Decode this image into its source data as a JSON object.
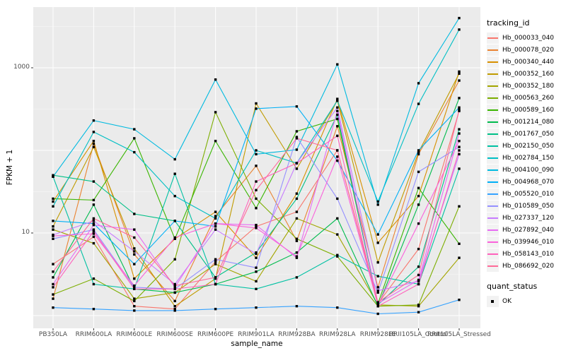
{
  "legend": {
    "tracking_title": "tracking_id",
    "quant_title": "quant_status",
    "quant_ok_label": "OK"
  },
  "chart_data": {
    "type": "line",
    "title": "",
    "xlabel": "sample_name",
    "ylabel": "FPKM + 1",
    "y_scale": "log10",
    "ylim": [
      0.7,
      5430
    ],
    "y_tick_labels": [
      {
        "value": 10,
        "label": "10"
      },
      {
        "value": 1000,
        "label": "1000"
      }
    ],
    "y_major_gridlines": [
      1,
      10,
      100,
      1000
    ],
    "y_minor_gridlines": [
      3.162,
      31.62,
      316.2,
      3162
    ],
    "panel_background": "#EBEBEB",
    "gridline_color": "#FFFFFF",
    "point_color": "#000000",
    "point_shape": "square",
    "legend_position": "right",
    "grid": "major and minor horizontal white lines, vertical white line per category",
    "categories": [
      "PB350LA",
      "RRIM600LA",
      "RRIM600LE",
      "RRIM600SE",
      "RRIM600PE",
      "RRIM901LA",
      "RRIM928BA",
      "RRIM928LA",
      "RRIM928LE",
      "RRII105LA_Control",
      "RRII105LA_Stressed"
    ],
    "series": [
      {
        "name": "Hb_000033_040",
        "color": "#F8766D",
        "values": [
          4.2,
          9,
          1.3,
          1.2,
          4.5,
          12,
          18,
          100,
          1.4,
          6.4,
          300
        ]
      },
      {
        "name": "Hb_000078_020",
        "color": "#EA8331",
        "values": [
          1.6,
          120,
          5.5,
          1.5,
          16,
          65,
          8,
          196,
          2.2,
          90,
          700
        ]
      },
      {
        "name": "Hb_000340_440",
        "color": "#D89000",
        "values": [
          24,
          130,
          2.8,
          8.5,
          18,
          5,
          30,
          420,
          7.6,
          28,
          900
        ]
      },
      {
        "name": "Hb_000352_160",
        "color": "#C09B00",
        "values": [
          12,
          110,
          6.5,
          1.3,
          2.8,
          370,
          60,
          400,
          4.4,
          95,
          850
        ]
      },
      {
        "name": "Hb_000352_180",
        "color": "#A3A500",
        "values": [
          11,
          7.5,
          1.6,
          1.9,
          4.2,
          2.6,
          15,
          9.6,
          1.35,
          1.3,
          5
        ]
      },
      {
        "name": "Hb_000563_260",
        "color": "#7CAE00",
        "values": [
          1.8,
          2.8,
          1.5,
          4.8,
          290,
          26,
          8.5,
          5.2,
          1.3,
          1.35,
          21
        ]
      },
      {
        "name": "Hb_000589_160",
        "color": "#39B600",
        "values": [
          26,
          25,
          140,
          8.5,
          130,
          20,
          170,
          240,
          1.4,
          35,
          7.4
        ]
      },
      {
        "name": "Hb_001214_080",
        "color": "#00BB4E",
        "values": [
          2.9,
          22,
          2.1,
          1.9,
          2.4,
          3.4,
          5.8,
          15,
          1.3,
          22,
          430
        ]
      },
      {
        "name": "Hb_001767_050",
        "color": "#00C087",
        "values": [
          50,
          42,
          17,
          14,
          2.9,
          5.8,
          26,
          270,
          1.35,
          3.9,
          180
        ]
      },
      {
        "name": "Hb_002150_050",
        "color": "#00C1A3",
        "values": [
          48,
          2.4,
          2.1,
          52,
          2.4,
          2.1,
          2.9,
          5.4,
          3.0,
          2.4,
          60
        ]
      },
      {
        "name": "Hb_002784_150",
        "color": "#00BFC4",
        "values": [
          21,
          167,
          95,
          28,
          15,
          100,
          70,
          400,
          24,
          366,
          2900
        ]
      },
      {
        "name": "Hb_004100_090",
        "color": "#00BAE0",
        "values": [
          48,
          230,
          180,
          78,
          720,
          90,
          102,
          1100,
          22,
          650,
          4000
        ]
      },
      {
        "name": "Hb_004968_070",
        "color": "#00B0F6",
        "values": [
          14,
          13,
          4.2,
          14,
          12,
          320,
          340,
          75,
          9.6,
          100,
          330
        ]
      },
      {
        "name": "Hb_005520_010",
        "color": "#35A2FF",
        "values": [
          1.25,
          1.2,
          1.15,
          1.15,
          1.2,
          1.25,
          1.3,
          1.25,
          1.05,
          1.1,
          1.55
        ]
      },
      {
        "name": "Hb_010589_050",
        "color": "#9590FF",
        "values": [
          8.5,
          11,
          2.2,
          2.1,
          4.8,
          3.8,
          145,
          26,
          1.9,
          55,
          110
        ]
      },
      {
        "name": "Hb_027337_120",
        "color": "#C77CFF",
        "values": [
          9.5,
          14,
          6,
          2.4,
          11,
          5.6,
          70,
          330,
          2.0,
          2.6,
          90
        ]
      },
      {
        "name": "Hb_027892_040",
        "color": "#E76BF3",
        "values": [
          2.4,
          12.5,
          11,
          2.2,
          13,
          12.5,
          5,
          300,
          1.4,
          2.7,
          160
        ]
      },
      {
        "name": "Hb_039946_010",
        "color": "#FA62DB",
        "values": [
          9.2,
          9.8,
          2.3,
          8.8,
          13,
          11.5,
          5.2,
          84,
          1.35,
          13,
          130
        ]
      },
      {
        "name": "Hb_058143_010",
        "color": "#FF62BC",
        "values": [
          2.2,
          10.5,
          2.1,
          2.1,
          2.4,
          42,
          70,
          150,
          1.3,
          2.4,
          100
        ]
      },
      {
        "name": "Hb_086692_020",
        "color": "#FF6A98",
        "values": [
          3.4,
          15,
          8.8,
          2.3,
          2.9,
          33,
          140,
          100,
          1.45,
          3.1,
          310
        ]
      }
    ],
    "quant_status_series": [
      {
        "label": "OK",
        "shape": "filled-square",
        "color": "#000000"
      }
    ]
  }
}
